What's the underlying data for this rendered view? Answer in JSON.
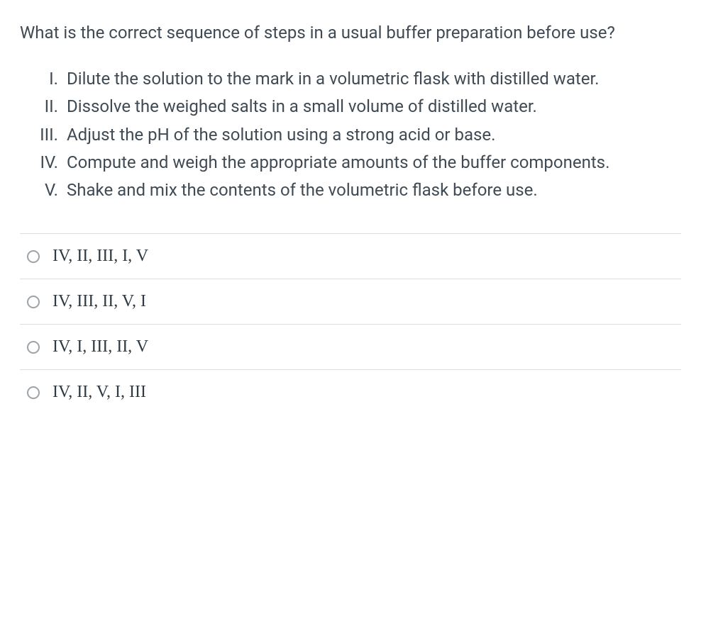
{
  "question": {
    "prompt": "What is the correct sequence of steps in a usual buffer preparation before use?",
    "steps": [
      {
        "numeral": "I.",
        "text": "Dilute the solution to the mark in a volumetric flask with distilled water."
      },
      {
        "numeral": "II.",
        "text": "Dissolve the weighed salts in a small volume of distilled water."
      },
      {
        "numeral": "III.",
        "text": "Adjust the pH of the solution using a strong acid or base."
      },
      {
        "numeral": "IV.",
        "text": "Compute and weigh the appropriate amounts of the buffer components."
      },
      {
        "numeral": "V.",
        "text": "Shake and mix the contents of the volumetric flask before use."
      }
    ],
    "options": [
      {
        "label": "IV, II, III, I, V"
      },
      {
        "label": "IV, III, II, V, I"
      },
      {
        "label": "IV, I, III, II, V"
      },
      {
        "label": "IV, II, V, I, III"
      }
    ]
  },
  "colors": {
    "text": "#3f4a54",
    "option_text": "#2f3a44",
    "divider": "#dcdcdc",
    "radio_border": "#9ba3ab",
    "background": "#ffffff"
  },
  "typography": {
    "body_font": "-apple-system, Segoe UI, Roboto, Helvetica Neue, Arial, sans-serif",
    "option_font": "Times New Roman, serif",
    "question_fontsize": 24,
    "option_fontsize": 24,
    "line_height": 1.55
  }
}
